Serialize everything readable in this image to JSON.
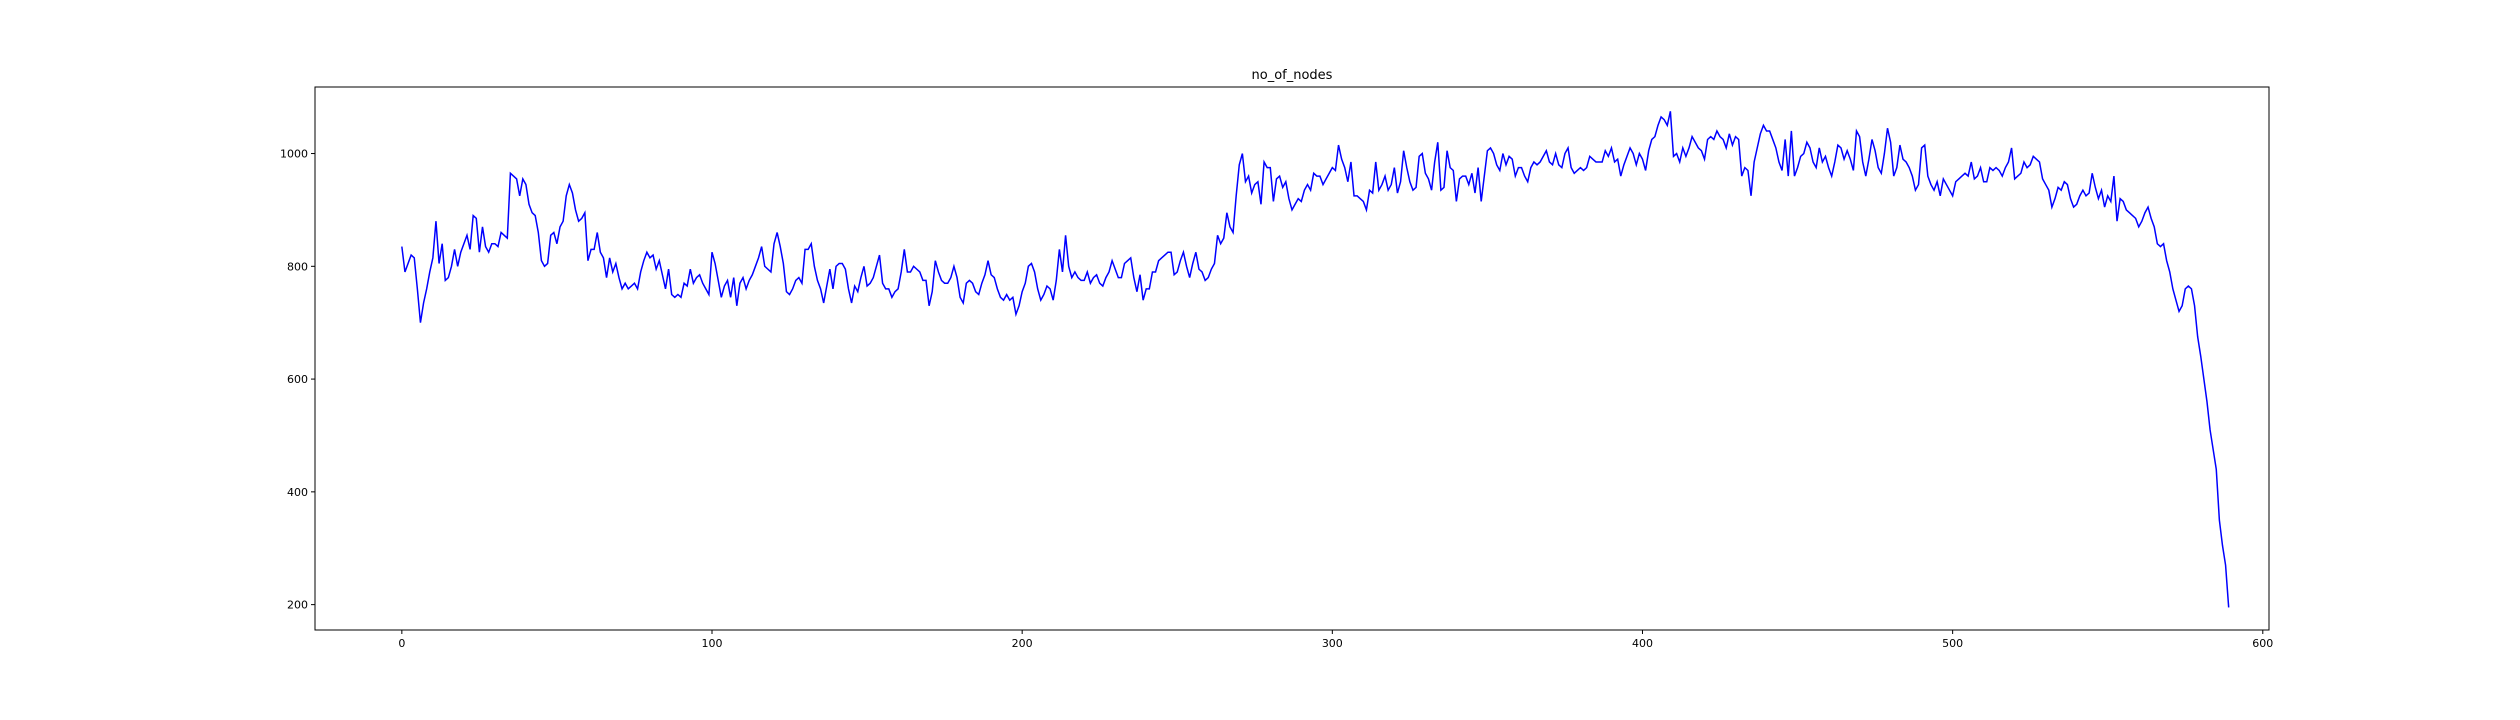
{
  "chart_data": {
    "type": "line",
    "title": "no_of_nodes",
    "xlabel": "",
    "ylabel": "",
    "xlim": [
      -28,
      602
    ],
    "ylim": [
      155,
      1118
    ],
    "x_ticks": [
      0,
      100,
      200,
      300,
      400,
      500,
      600
    ],
    "y_ticks": [
      200,
      400,
      600,
      800,
      1000
    ],
    "grid": false,
    "legend": "none",
    "line_color": "#0000ff",
    "series": [
      {
        "x_start": 0,
        "x_step": 1,
        "values": [
          835,
          790,
          805,
          820,
          815,
          760,
          700,
          735,
          760,
          790,
          815,
          880,
          805,
          840,
          775,
          780,
          800,
          830,
          800,
          825,
          840,
          855,
          830,
          890,
          885,
          825,
          870,
          835,
          825,
          840,
          840,
          835,
          860,
          855,
          850,
          965,
          960,
          955,
          925,
          955,
          945,
          910,
          895,
          890,
          860,
          810,
          800,
          805,
          855,
          860,
          840,
          870,
          880,
          925,
          945,
          930,
          900,
          880,
          885,
          895,
          810,
          830,
          830,
          860,
          825,
          815,
          780,
          815,
          790,
          805,
          780,
          760,
          770,
          760,
          765,
          770,
          760,
          790,
          810,
          825,
          815,
          820,
          795,
          810,
          785,
          760,
          795,
          750,
          745,
          750,
          745,
          770,
          765,
          795,
          770,
          780,
          785,
          770,
          760,
          750,
          825,
          805,
          775,
          745,
          765,
          775,
          745,
          780,
          730,
          770,
          780,
          760,
          775,
          785,
          800,
          815,
          835,
          800,
          795,
          790,
          840,
          860,
          835,
          805,
          755,
          750,
          760,
          775,
          780,
          770,
          830,
          830,
          840,
          800,
          775,
          760,
          735,
          765,
          795,
          760,
          800,
          805,
          805,
          795,
          760,
          735,
          765,
          755,
          780,
          800,
          765,
          770,
          780,
          800,
          820,
          770,
          760,
          760,
          745,
          755,
          760,
          790,
          830,
          790,
          790,
          800,
          795,
          790,
          775,
          775,
          730,
          755,
          810,
          790,
          775,
          770,
          770,
          780,
          800,
          780,
          745,
          735,
          770,
          775,
          770,
          755,
          750,
          770,
          785,
          810,
          785,
          780,
          760,
          745,
          740,
          750,
          740,
          745,
          715,
          730,
          755,
          770,
          800,
          805,
          790,
          760,
          740,
          750,
          765,
          760,
          740,
          775,
          830,
          790,
          855,
          800,
          780,
          790,
          780,
          775,
          775,
          790,
          770,
          780,
          785,
          770,
          765,
          780,
          790,
          810,
          795,
          780,
          780,
          805,
          810,
          815,
          780,
          755,
          785,
          740,
          760,
          760,
          790,
          790,
          810,
          815,
          820,
          825,
          825,
          785,
          790,
          810,
          825,
          800,
          780,
          805,
          825,
          795,
          790,
          775,
          780,
          795,
          805,
          855,
          840,
          850,
          895,
          870,
          860,
          925,
          980,
          1000,
          950,
          960,
          930,
          945,
          950,
          910,
          985,
          975,
          975,
          915,
          955,
          960,
          940,
          950,
          920,
          900,
          910,
          920,
          915,
          935,
          945,
          935,
          965,
          960,
          960,
          945,
          955,
          965,
          975,
          970,
          1015,
          990,
          975,
          950,
          985,
          925,
          925,
          920,
          915,
          900,
          935,
          930,
          985,
          935,
          945,
          960,
          935,
          945,
          975,
          930,
          950,
          1005,
          975,
          950,
          935,
          940,
          995,
          1000,
          965,
          955,
          935,
          985,
          1020,
          935,
          940,
          1005,
          975,
          970,
          915,
          955,
          960,
          960,
          945,
          965,
          930,
          975,
          915,
          960,
          1005,
          1010,
          1000,
          980,
          970,
          1000,
          980,
          995,
          990,
          960,
          975,
          975,
          960,
          950,
          975,
          985,
          980,
          985,
          995,
          1005,
          985,
          980,
          1000,
          980,
          975,
          1000,
          1010,
          975,
          965,
          970,
          975,
          970,
          975,
          995,
          990,
          985,
          985,
          985,
          1005,
          995,
          1010,
          985,
          990,
          960,
          980,
          995,
          1010,
          1000,
          980,
          1000,
          990,
          970,
          1005,
          1025,
          1030,
          1050,
          1065,
          1060,
          1050,
          1075,
          995,
          1000,
          985,
          1010,
          995,
          1010,
          1030,
          1020,
          1010,
          1005,
          990,
          1025,
          1030,
          1025,
          1040,
          1030,
          1025,
          1010,
          1035,
          1015,
          1030,
          1025,
          960,
          975,
          970,
          925,
          985,
          1010,
          1035,
          1050,
          1040,
          1040,
          1025,
          1010,
          985,
          970,
          1025,
          960,
          1040,
          960,
          975,
          995,
          1000,
          1020,
          1010,
          985,
          975,
          1010,
          985,
          995,
          975,
          960,
          985,
          1015,
          1010,
          990,
          1005,
          990,
          970,
          1040,
          1030,
          985,
          960,
          990,
          1025,
          1005,
          975,
          965,
          1000,
          1045,
          1020,
          960,
          975,
          1015,
          990,
          985,
          975,
          960,
          935,
          945,
          1010,
          1015,
          960,
          945,
          935,
          950,
          925,
          955,
          945,
          935,
          925,
          950,
          955,
          960,
          965,
          960,
          985,
          955,
          960,
          975,
          950,
          950,
          975,
          970,
          975,
          970,
          960,
          975,
          985,
          1010,
          955,
          960,
          965,
          985,
          975,
          980,
          995,
          990,
          985,
          955,
          945,
          935,
          905,
          920,
          940,
          935,
          950,
          945,
          920,
          905,
          910,
          925,
          935,
          925,
          930,
          965,
          940,
          920,
          935,
          905,
          925,
          915,
          960,
          880,
          920,
          915,
          900,
          895,
          890,
          885,
          870,
          880,
          895,
          905,
          885,
          870,
          840,
          835,
          840,
          810,
          790,
          760,
          740,
          720,
          730,
          760,
          765,
          760,
          730,
          675,
          640,
          600,
          560,
          510,
          475,
          440,
          350,
          305,
          270,
          195
        ]
      }
    ]
  }
}
